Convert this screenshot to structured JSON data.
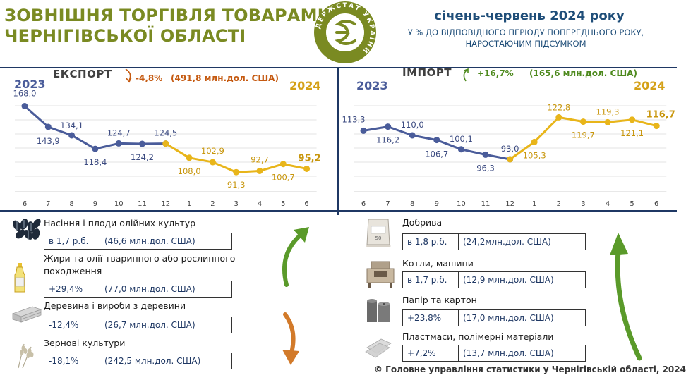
{
  "header": {
    "title_line1": "ЗОВНІШНЯ ТОРГІВЛЯ ТОВАРАМИ",
    "title_line2": "ЧЕРНІГІВСЬКОЇ ОБЛАСТІ",
    "period": "січень-червень 2024 року",
    "subtitle_line1": "У % ДО ВІДПОВІДНОГО ПЕРІОДУ ПОПЕРЕДНЬОГО РОКУ,",
    "subtitle_line2": "НАРОСТАЮЧИМ ПІДСУМКОМ",
    "logo_text": "ДЕРЖСТАТ УКРАЇНИ"
  },
  "export": {
    "title": "ЕКСПОРТ",
    "change": "-4,8%",
    "amount": "(491,8 млн.дол. США)",
    "year_left": "2023",
    "year_right": "2024"
  },
  "import": {
    "title": "ІМПОРТ",
    "change": "+16,7%",
    "amount": "(165,6 млн.дол. США)",
    "year_left": "2023",
    "year_right": "2024"
  },
  "chart_data": [
    {
      "type": "line",
      "title": "ЕКСПОРТ",
      "categories": [
        "6",
        "7",
        "8",
        "9",
        "10",
        "11",
        "12",
        "1",
        "2",
        "3",
        "4",
        "5",
        "6"
      ],
      "series": [
        {
          "name": "2023",
          "color": "#4a5c9a",
          "values": [
            168.0,
            143.9,
            134.1,
            118.4,
            124.7,
            124.2,
            124.5,
            null,
            null,
            null,
            null,
            null,
            null
          ]
        },
        {
          "name": "2024",
          "color": "#e8b51a",
          "values": [
            null,
            null,
            null,
            null,
            null,
            null,
            124.5,
            108.0,
            102.9,
            91.3,
            92.7,
            100.7,
            95.2
          ]
        }
      ],
      "labels": [
        "168,0",
        "143,9",
        "134,1",
        "118,4",
        "124,7",
        "124,2",
        "124,5",
        "108,0",
        "102,9",
        "91,3",
        "92,7",
        "100,7",
        "95,2"
      ],
      "ylim": [
        80,
        175
      ]
    },
    {
      "type": "line",
      "title": "ІМПОРТ",
      "categories": [
        "6",
        "7",
        "8",
        "9",
        "10",
        "11",
        "12",
        "1",
        "2",
        "3",
        "4",
        "5",
        "6"
      ],
      "series": [
        {
          "name": "2023",
          "color": "#4a5c9a",
          "values": [
            113.3,
            116.2,
            110.0,
            106.7,
            100.1,
            96.3,
            93.0,
            null,
            null,
            null,
            null,
            null,
            null
          ]
        },
        {
          "name": "2024",
          "color": "#e8b51a",
          "values": [
            null,
            null,
            null,
            null,
            null,
            null,
            93.0,
            105.3,
            122.8,
            119.7,
            119.3,
            121.1,
            116.7
          ]
        }
      ],
      "labels": [
        "113,3",
        "116,2",
        "110,0",
        "106,7",
        "100,1",
        "96,3",
        "93,0",
        "105,3",
        "122,8",
        "119,7",
        "119,3",
        "121,1",
        "116,7"
      ],
      "ylim": [
        75,
        135
      ]
    }
  ],
  "export_items": [
    {
      "title": "Насіння і плоди олійних культур",
      "v1": "в 1,7 р.б.",
      "v2": "(46,6 млн.дол. США)",
      "icon": "seeds-icon"
    },
    {
      "title": "Жири та олії тваринного або рослинного походження",
      "v1": "+29,4%",
      "v2": "(77,0 млн.дол. США)",
      "icon": "oil-bottle-icon"
    },
    {
      "title": "Деревина і вироби з деревини",
      "v1": "-12,4%",
      "v2": "(26,7 млн.дол. США)",
      "icon": "wood-planks-icon"
    },
    {
      "title": "Зернові культури",
      "v1": "-18,1%",
      "v2": "(242,5 млн.дол. США)",
      "icon": "wheat-icon"
    }
  ],
  "import_items": [
    {
      "title": "Добрива",
      "v1": "в 1,8 р.б.",
      "v2": "(24,2млн.дол. США)",
      "icon": "fertilizer-bag-icon"
    },
    {
      "title": "Котли, машини",
      "v1": "в 1,7 р.б.",
      "v2": "(12,9 млн.дол. США)",
      "icon": "machine-icon"
    },
    {
      "title": "Папір та картон",
      "v1": "+23,8%",
      "v2": "(17,0 млн.дол. США)",
      "icon": "paper-rolls-icon"
    },
    {
      "title": "Пластмаси, полімерні матеріали",
      "v1": "+7,2%",
      "v2": "(13,7 млн.дол. США)",
      "icon": "plastic-sheets-icon"
    }
  ],
  "footer": "© Головне управління статистики у Чернігівській області, 2024"
}
